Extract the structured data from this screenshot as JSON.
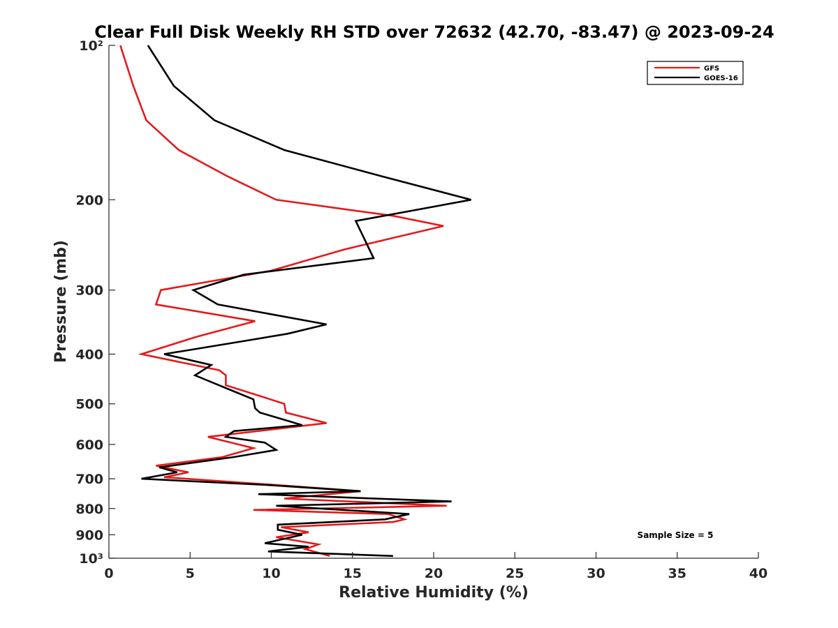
{
  "chart_data": {
    "type": "line",
    "title": "Clear Full Disk Weekly RH STD over 72632 (42.70, -83.47) @ 2023-09-24",
    "xlabel": "Relative Humidity (%)",
    "ylabel": "Pressure (mb)",
    "xlim": [
      0,
      40
    ],
    "ylim": [
      100,
      1000
    ],
    "y_scale": "log",
    "y_reversed": true,
    "x_ticks": [
      0,
      5,
      10,
      15,
      20,
      25,
      30,
      35,
      40
    ],
    "x_tick_labels": [
      "0",
      "5",
      "10",
      "15",
      "20",
      "25",
      "30",
      "35",
      "40"
    ],
    "y_ticks": [
      100,
      200,
      300,
      400,
      500,
      600,
      700,
      800,
      900,
      1000
    ],
    "y_tick_labels": [
      "10²",
      "200",
      "300",
      "400",
      "500",
      "600",
      "700",
      "800",
      "900",
      "10³"
    ],
    "grid": false,
    "legend_position": "top-right",
    "annotation": "Sample Size = 5",
    "series": [
      {
        "name": "GFS",
        "color": "#e31a1c",
        "points": [
          [
            0.7,
            100
          ],
          [
            1.5,
            120
          ],
          [
            2.3,
            140
          ],
          [
            4.3,
            160
          ],
          [
            7.3,
            180
          ],
          [
            10.3,
            200
          ],
          [
            17.5,
            215
          ],
          [
            20.6,
            225
          ],
          [
            14.5,
            250
          ],
          [
            10.0,
            275
          ],
          [
            3.2,
            300
          ],
          [
            2.9,
            320
          ],
          [
            9.0,
            345
          ],
          [
            5.4,
            370
          ],
          [
            2.0,
            400
          ],
          [
            6.8,
            430
          ],
          [
            7.2,
            440
          ],
          [
            7.2,
            460
          ],
          [
            9.5,
            485
          ],
          [
            10.8,
            500
          ],
          [
            10.9,
            520
          ],
          [
            13.4,
            545
          ],
          [
            6.1,
            580
          ],
          [
            8.9,
            610
          ],
          [
            7.0,
            635
          ],
          [
            2.9,
            660
          ],
          [
            4.9,
            680
          ],
          [
            3.4,
            695
          ],
          [
            10.3,
            720
          ],
          [
            15.5,
            740
          ],
          [
            10.8,
            765
          ],
          [
            20.8,
            790
          ],
          [
            8.9,
            805
          ],
          [
            17.2,
            820
          ],
          [
            18.2,
            840
          ],
          [
            17.5,
            850
          ],
          [
            10.6,
            870
          ],
          [
            12.3,
            890
          ],
          [
            10.3,
            910
          ],
          [
            12.9,
            940
          ],
          [
            12.1,
            960
          ],
          [
            13.6,
            990
          ]
        ]
      },
      {
        "name": "GOES-16",
        "color": "#000000",
        "points": [
          [
            2.4,
            100
          ],
          [
            4.0,
            120
          ],
          [
            6.5,
            140
          ],
          [
            10.8,
            160
          ],
          [
            16.8,
            180
          ],
          [
            22.3,
            200
          ],
          [
            15.2,
            220
          ],
          [
            16.3,
            260
          ],
          [
            8.3,
            280
          ],
          [
            5.2,
            300
          ],
          [
            6.7,
            320
          ],
          [
            13.4,
            350
          ],
          [
            11.0,
            365
          ],
          [
            7.7,
            380
          ],
          [
            3.4,
            400
          ],
          [
            6.3,
            420
          ],
          [
            5.3,
            440
          ],
          [
            7.5,
            470
          ],
          [
            8.9,
            490
          ],
          [
            9.0,
            510
          ],
          [
            9.3,
            520
          ],
          [
            11.9,
            550
          ],
          [
            7.7,
            565
          ],
          [
            7.2,
            580
          ],
          [
            9.6,
            595
          ],
          [
            10.3,
            615
          ],
          [
            7.7,
            635
          ],
          [
            3.1,
            665
          ],
          [
            4.2,
            680
          ],
          [
            2.0,
            700
          ],
          [
            9.8,
            720
          ],
          [
            15.5,
            740
          ],
          [
            9.2,
            750
          ],
          [
            21.1,
            775
          ],
          [
            10.3,
            790
          ],
          [
            18.5,
            820
          ],
          [
            17.0,
            840
          ],
          [
            10.4,
            860
          ],
          [
            10.4,
            880
          ],
          [
            11.9,
            900
          ],
          [
            9.6,
            935
          ],
          [
            12.3,
            950
          ],
          [
            9.8,
            970
          ],
          [
            17.5,
            990
          ]
        ]
      }
    ]
  }
}
